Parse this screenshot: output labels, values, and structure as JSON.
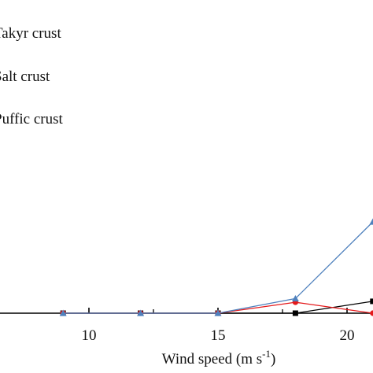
{
  "chart_data": {
    "type": "line",
    "title": "",
    "xlabel": "Wind speed (m s",
    "xlabel_sup": "-1",
    "xlabel_close": ")",
    "ylabel": "",
    "xlim": [
      6.9,
      21.25
    ],
    "ylim": [
      0,
      1
    ],
    "x_ticks": [
      10,
      15,
      20
    ],
    "x_tick_labels": [
      "10",
      "15",
      "20"
    ],
    "x_minor_ticks": [
      12.5,
      17.5
    ],
    "grid": false,
    "legend_position": "top-left",
    "series": [
      {
        "name": "Takyr crust",
        "color": "#000000",
        "marker": "square",
        "x": [
          9,
          12,
          15,
          18,
          21
        ],
        "y": [
          0,
          0,
          0,
          0,
          0.13
        ]
      },
      {
        "name": "Salt crust",
        "color": "#e41a1c",
        "marker": "circle",
        "x": [
          9,
          12,
          15,
          18,
          21
        ],
        "y": [
          0,
          0,
          0,
          0.12,
          0
        ]
      },
      {
        "name": "Puffic crust",
        "color": "#4f81bd",
        "marker": "triangle",
        "x": [
          9,
          12,
          15,
          18,
          21
        ],
        "y": [
          0,
          0,
          0,
          0.16,
          1
        ]
      }
    ]
  }
}
